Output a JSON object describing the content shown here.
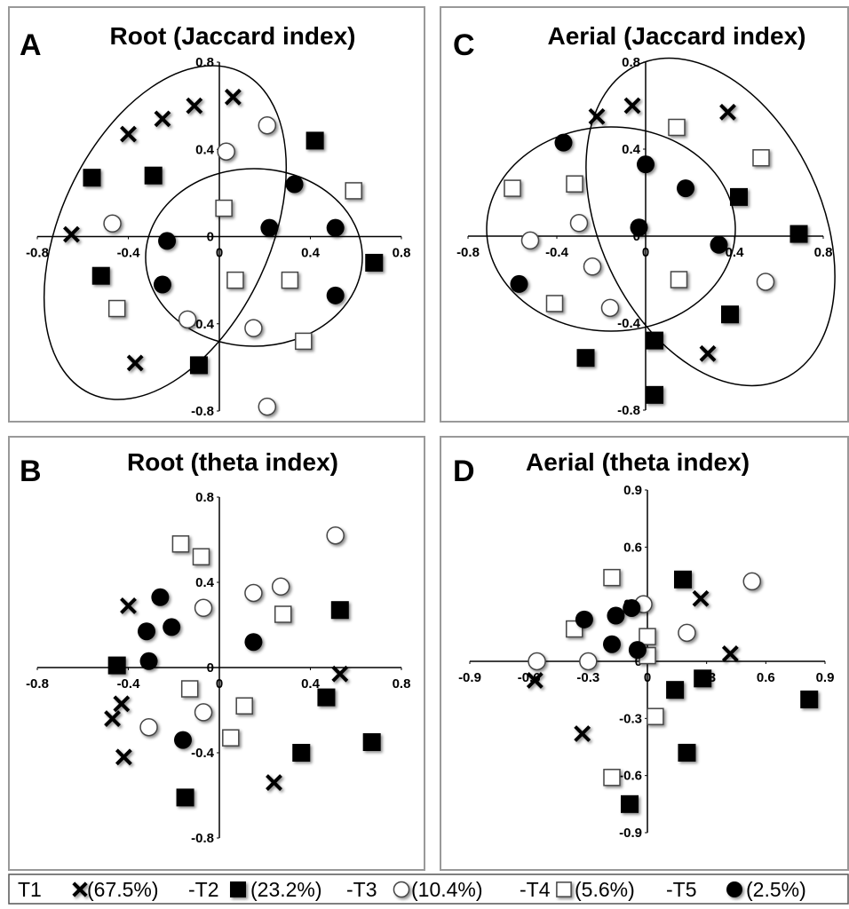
{
  "chart_data": [
    {
      "type": "scatter",
      "label": "A",
      "title": "Root (Jaccard index)",
      "xlim": [
        -0.8,
        0.8
      ],
      "ylim": [
        -0.8,
        0.8
      ],
      "xticks": [
        -0.8,
        -0.4,
        0,
        0.4,
        0.8
      ],
      "yticks": [
        -0.8,
        -0.4,
        0,
        0.4,
        0.8
      ],
      "series": [
        {
          "marker": "x",
          "color": "#000000",
          "x": [
            -0.65,
            -0.4,
            -0.25,
            -0.11,
            0.06,
            -0.37
          ],
          "y": [
            0.01,
            0.47,
            0.54,
            0.6,
            0.64,
            -0.58
          ]
        },
        {
          "marker": "filled-square",
          "color": "#000000",
          "x": [
            -0.56,
            -0.29,
            0.42,
            0.68,
            -0.52,
            -0.09
          ],
          "y": [
            0.27,
            0.28,
            0.44,
            -0.12,
            -0.18,
            -0.59
          ]
        },
        {
          "marker": "open-circle",
          "color": "#000000",
          "x": [
            0.21,
            0.03,
            -0.47,
            -0.14,
            0.15,
            0.21
          ],
          "y": [
            0.51,
            0.39,
            0.06,
            -0.38,
            -0.42,
            -0.78
          ]
        },
        {
          "marker": "open-square",
          "color": "#000000",
          "x": [
            0.02,
            0.59,
            0.07,
            0.31,
            -0.45,
            0.37
          ],
          "y": [
            0.13,
            0.21,
            -0.2,
            -0.2,
            -0.33,
            -0.48
          ]
        },
        {
          "marker": "filled-circle",
          "color": "#000000",
          "x": [
            0.33,
            0.22,
            0.51,
            -0.23,
            -0.25,
            0.51
          ],
          "y": [
            0.24,
            0.04,
            0.04,
            -0.02,
            -0.22,
            -0.27
          ]
        }
      ]
    },
    {
      "type": "scatter",
      "label": "B",
      "title": "Root (theta index)",
      "xlim": [
        -0.8,
        0.8
      ],
      "ylim": [
        -0.8,
        0.8
      ],
      "xticks": [
        -0.8,
        -0.4,
        0,
        0.4,
        0.8
      ],
      "yticks": [
        -0.8,
        -0.4,
        0,
        0.4,
        0.8
      ],
      "series": [
        {
          "marker": "x",
          "color": "#000000",
          "x": [
            -0.4,
            -0.43,
            -0.47,
            -0.42,
            0.53,
            0.24
          ],
          "y": [
            0.29,
            -0.17,
            -0.24,
            -0.42,
            -0.03,
            -0.54
          ]
        },
        {
          "marker": "filled-square",
          "color": "#000000",
          "x": [
            -0.45,
            0.53,
            0.47,
            0.36,
            0.67,
            -0.15
          ],
          "y": [
            0.01,
            0.27,
            -0.14,
            -0.4,
            -0.35,
            -0.61
          ]
        },
        {
          "marker": "open-circle",
          "color": "#000000",
          "x": [
            0.51,
            0.27,
            0.15,
            -0.07,
            -0.07,
            -0.31
          ],
          "y": [
            0.62,
            0.38,
            0.35,
            0.28,
            -0.21,
            -0.28
          ]
        },
        {
          "marker": "open-square",
          "color": "#000000",
          "x": [
            -0.17,
            -0.08,
            0.28,
            -0.13,
            0.11,
            0.05
          ],
          "y": [
            0.58,
            0.52,
            0.25,
            -0.1,
            -0.18,
            -0.33
          ]
        },
        {
          "marker": "filled-circle",
          "color": "#000000",
          "x": [
            -0.26,
            -0.21,
            -0.32,
            -0.31,
            0.15,
            -0.16
          ],
          "y": [
            0.33,
            0.19,
            0.17,
            0.03,
            0.12,
            -0.34
          ]
        }
      ]
    },
    {
      "type": "scatter",
      "label": "C",
      "title": "Aerial (Jaccard index)",
      "xlim": [
        -0.8,
        0.8
      ],
      "ylim": [
        -0.8,
        0.8
      ],
      "xticks": [
        -0.8,
        -0.4,
        0,
        0.4,
        0.8
      ],
      "yticks": [
        -0.8,
        -0.4,
        0,
        0.4,
        0.8
      ],
      "series": [
        {
          "marker": "x",
          "color": "#000000",
          "x": [
            -0.22,
            -0.06,
            0.37,
            0.28
          ],
          "y": [
            0.55,
            0.6,
            0.57,
            -0.54
          ]
        },
        {
          "marker": "filled-square",
          "color": "#000000",
          "x": [
            0.42,
            0.69,
            0.38,
            0.04,
            -0.27,
            0.04
          ],
          "y": [
            0.18,
            0.01,
            -0.36,
            -0.48,
            -0.56,
            -0.73
          ]
        },
        {
          "marker": "open-circle",
          "color": "#000000",
          "x": [
            -0.3,
            -0.52,
            -0.24,
            0.54,
            -0.16
          ],
          "y": [
            0.06,
            -0.02,
            -0.14,
            -0.21,
            -0.33
          ]
        },
        {
          "marker": "open-square",
          "color": "#000000",
          "x": [
            0.14,
            0.52,
            -0.6,
            -0.32,
            0.15,
            -0.41
          ],
          "y": [
            0.5,
            0.36,
            0.22,
            0.24,
            -0.2,
            -0.31
          ]
        },
        {
          "marker": "filled-circle",
          "color": "#000000",
          "x": [
            -0.37,
            0.0,
            0.18,
            -0.03,
            0.33,
            -0.57
          ],
          "y": [
            0.43,
            0.33,
            0.22,
            0.04,
            -0.04,
            -0.22
          ]
        }
      ]
    },
    {
      "type": "scatter",
      "label": "D",
      "title": "Aerial (theta index)",
      "xlim": [
        -0.9,
        0.9
      ],
      "ylim": [
        -0.9,
        0.9
      ],
      "xticks": [
        -0.9,
        -0.6,
        -0.3,
        0,
        0.3,
        0.6,
        0.9
      ],
      "yticks": [
        -0.9,
        -0.6,
        -0.3,
        0,
        0.3,
        0.6,
        0.9
      ],
      "series": [
        {
          "marker": "x",
          "color": "#000000",
          "x": [
            0.27,
            0.42,
            -0.57,
            -0.33
          ],
          "y": [
            0.33,
            0.04,
            -0.1,
            -0.38
          ]
        },
        {
          "marker": "filled-square",
          "color": "#000000",
          "x": [
            0.18,
            0.28,
            0.14,
            0.82,
            0.2,
            -0.09
          ],
          "y": [
            0.43,
            -0.09,
            -0.15,
            -0.2,
            -0.48,
            -0.75
          ]
        },
        {
          "marker": "open-circle",
          "color": "#000000",
          "x": [
            0.53,
            -0.02,
            0.2,
            -0.56,
            -0.3
          ],
          "y": [
            0.42,
            0.3,
            0.15,
            0.0,
            0.0
          ]
        },
        {
          "marker": "open-square",
          "color": "#000000",
          "x": [
            -0.18,
            -0.37,
            0.0,
            0.0,
            0.04,
            -0.18
          ],
          "y": [
            0.44,
            0.17,
            0.13,
            0.03,
            -0.29,
            -0.61
          ]
        },
        {
          "marker": "filled-circle",
          "color": "#000000",
          "x": [
            -0.32,
            -0.16,
            -0.08,
            -0.18,
            -0.05
          ],
          "y": [
            0.22,
            0.24,
            0.28,
            0.09,
            0.06
          ]
        }
      ]
    }
  ],
  "legend": [
    {
      "name": "T1",
      "marker": "x",
      "label": "(67.5%)"
    },
    {
      "name": "-T2",
      "marker": "filled-square",
      "label": "(23.2%)"
    },
    {
      "name": "-T3",
      "marker": "open-circle",
      "label": "(10.4%)"
    },
    {
      "name": "-T4",
      "marker": "open-square",
      "label": "(5.6%)"
    },
    {
      "name": "-T5",
      "marker": "filled-circle",
      "label": "(2.5%)"
    }
  ]
}
